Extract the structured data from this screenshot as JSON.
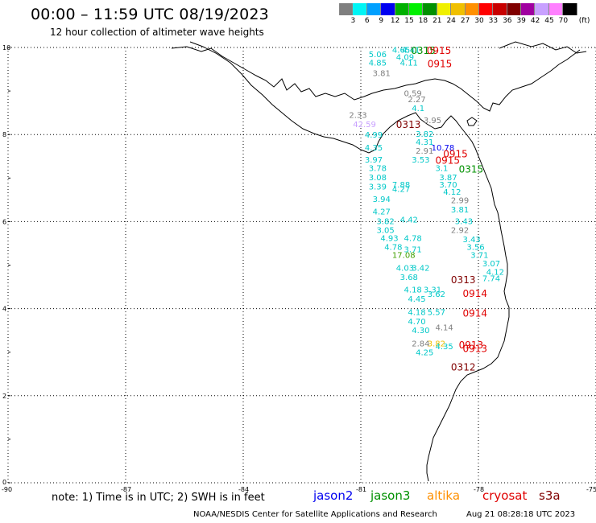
{
  "header": {
    "title": "00:00 – 11:59 UTC 08/19/2023",
    "subtitle": "12 hour collection of altimeter wave heights"
  },
  "legend": {
    "unit": "(ft)",
    "colors": [
      "#7f7f7f",
      "#00f5f5",
      "#00a0ff",
      "#0000f0",
      "#00b000",
      "#00f000",
      "#009000",
      "#f0f000",
      "#f0c000",
      "#ff9000",
      "#ff0000",
      "#c80000",
      "#800000",
      "#a000a0",
      "#c8a0ff",
      "#ff80ff",
      "#000000"
    ],
    "labels": [
      "3",
      "6",
      "9",
      "12",
      "15",
      "18",
      "21",
      "24",
      "27",
      "30",
      "33",
      "36",
      "39",
      "42",
      "45",
      "70"
    ]
  },
  "axes": {
    "x_ticks": [
      "-90",
      "-87",
      "-84",
      "-81",
      "-78",
      "-75"
    ],
    "y_ticks": [
      "10",
      "8",
      "6",
      "4",
      "2",
      "0"
    ]
  },
  "wave_labels": [
    {
      "text": "4.65",
      "lon": -80.2,
      "lat": 9.88,
      "color": "#00c8c8"
    },
    {
      "text": "4.41",
      "lon": -79.95,
      "lat": 9.88,
      "color": "#00c8c8"
    },
    {
      "text": "5.06",
      "lon": -80.8,
      "lat": 9.78,
      "color": "#00c8c8"
    },
    {
      "text": "4.09",
      "lon": -80.1,
      "lat": 9.71,
      "color": "#00c8c8"
    },
    {
      "text": "4.85",
      "lon": -80.8,
      "lat": 9.58,
      "color": "#00c8c8"
    },
    {
      "text": "4.11",
      "lon": -80.0,
      "lat": 9.58,
      "color": "#00c8c8"
    },
    {
      "text": "3.81",
      "lon": -80.7,
      "lat": 9.34,
      "color": "#7f7f7f"
    },
    {
      "text": "0.59",
      "lon": -79.9,
      "lat": 8.88,
      "color": "#7f7f7f"
    },
    {
      "text": "2.27",
      "lon": -79.8,
      "lat": 8.74,
      "color": "#7f7f7f"
    },
    {
      "text": "4.1",
      "lon": -79.7,
      "lat": 8.54,
      "color": "#00c8c8"
    },
    {
      "text": "2.33",
      "lon": -81.3,
      "lat": 8.38,
      "color": "#7f7f7f"
    },
    {
      "text": "42.59",
      "lon": -81.2,
      "lat": 8.17,
      "color": "#c8a0ff"
    },
    {
      "text": "3.95",
      "lon": -79.4,
      "lat": 8.26,
      "color": "#7f7f7f"
    },
    {
      "text": "4.99",
      "lon": -80.9,
      "lat": 7.93,
      "color": "#00c8c8"
    },
    {
      "text": "3.82",
      "lon": -79.6,
      "lat": 7.95,
      "color": "#00c8c8"
    },
    {
      "text": "4.31",
      "lon": -79.6,
      "lat": 7.76,
      "color": "#00c8c8"
    },
    {
      "text": "10.78",
      "lon": -79.2,
      "lat": 7.63,
      "color": "#0000f0"
    },
    {
      "text": "4.35",
      "lon": -80.9,
      "lat": 7.63,
      "color": "#00c8c8"
    },
    {
      "text": "2.91",
      "lon": -79.6,
      "lat": 7.56,
      "color": "#7f7f7f"
    },
    {
      "text": "3.97",
      "lon": -80.9,
      "lat": 7.36,
      "color": "#00c8c8"
    },
    {
      "text": "3.53",
      "lon": -79.7,
      "lat": 7.36,
      "color": "#00c8c8"
    },
    {
      "text": "3.78",
      "lon": -80.8,
      "lat": 7.16,
      "color": "#00c8c8"
    },
    {
      "text": "3.1",
      "lon": -79.1,
      "lat": 7.16,
      "color": "#00c8c8"
    },
    {
      "text": "3.08",
      "lon": -80.8,
      "lat": 6.95,
      "color": "#00c8c8"
    },
    {
      "text": "3.87",
      "lon": -79.0,
      "lat": 6.95,
      "color": "#00c8c8"
    },
    {
      "text": "7.88",
      "lon": -80.2,
      "lat": 6.78,
      "color": "#00c8c8"
    },
    {
      "text": "3.70",
      "lon": -79.0,
      "lat": 6.78,
      "color": "#00c8c8"
    },
    {
      "text": "3.39",
      "lon": -80.8,
      "lat": 6.74,
      "color": "#00c8c8"
    },
    {
      "text": "4.27",
      "lon": -80.2,
      "lat": 6.68,
      "color": "#00c8c8"
    },
    {
      "text": "4.12",
      "lon": -78.9,
      "lat": 6.62,
      "color": "#00c8c8"
    },
    {
      "text": "3.94",
      "lon": -80.7,
      "lat": 6.45,
      "color": "#00c8c8"
    },
    {
      "text": "2.99",
      "lon": -78.7,
      "lat": 6.42,
      "color": "#7f7f7f"
    },
    {
      "text": "4.27",
      "lon": -80.7,
      "lat": 6.16,
      "color": "#00c8c8"
    },
    {
      "text": "3.81",
      "lon": -78.7,
      "lat": 6.21,
      "color": "#00c8c8"
    },
    {
      "text": "3.82",
      "lon": -80.6,
      "lat": 5.94,
      "color": "#00c8c8"
    },
    {
      "text": "4.42",
      "lon": -80.0,
      "lat": 5.98,
      "color": "#00c8c8"
    },
    {
      "text": "3.43",
      "lon": -78.6,
      "lat": 5.94,
      "color": "#00c8c8"
    },
    {
      "text": "3.05",
      "lon": -80.6,
      "lat": 5.74,
      "color": "#00c8c8"
    },
    {
      "text": "2.92",
      "lon": -78.7,
      "lat": 5.74,
      "color": "#7f7f7f"
    },
    {
      "text": "4.93",
      "lon": -80.5,
      "lat": 5.55,
      "color": "#00c8c8"
    },
    {
      "text": "4.78",
      "lon": -79.9,
      "lat": 5.55,
      "color": "#00c8c8"
    },
    {
      "text": "3.43",
      "lon": -78.4,
      "lat": 5.53,
      "color": "#00c8c8"
    },
    {
      "text": "4.78",
      "lon": -80.4,
      "lat": 5.35,
      "color": "#00c8c8"
    },
    {
      "text": "3.71",
      "lon": -79.9,
      "lat": 5.3,
      "color": "#00c8c8"
    },
    {
      "text": "3.56",
      "lon": -78.3,
      "lat": 5.35,
      "color": "#00c8c8"
    },
    {
      "text": "17.08",
      "lon": -80.2,
      "lat": 5.17,
      "color": "#40a000"
    },
    {
      "text": "3.71",
      "lon": -78.2,
      "lat": 5.17,
      "color": "#00c8c8"
    },
    {
      "text": "4.03",
      "lon": -80.1,
      "lat": 4.87,
      "color": "#00c8c8"
    },
    {
      "text": "3.42",
      "lon": -79.7,
      "lat": 4.87,
      "color": "#00c8c8"
    },
    {
      "text": "3.07",
      "lon": -77.9,
      "lat": 4.97,
      "color": "#00c8c8"
    },
    {
      "text": "3.68",
      "lon": -80.0,
      "lat": 4.66,
      "color": "#00c8c8"
    },
    {
      "text": "4.12",
      "lon": -77.8,
      "lat": 4.78,
      "color": "#00c8c8"
    },
    {
      "text": "7.74",
      "lon": -77.9,
      "lat": 4.63,
      "color": "#00c8c8"
    },
    {
      "text": "4.18",
      "lon": -79.9,
      "lat": 4.37,
      "color": "#00c8c8"
    },
    {
      "text": "3.31",
      "lon": -79.4,
      "lat": 4.37,
      "color": "#00c8c8"
    },
    {
      "text": "3.62",
      "lon": -79.3,
      "lat": 4.27,
      "color": "#00c8c8"
    },
    {
      "text": "4.45",
      "lon": -79.8,
      "lat": 4.16,
      "color": "#00c8c8"
    },
    {
      "text": "4.18",
      "lon": -79.8,
      "lat": 3.85,
      "color": "#00c8c8"
    },
    {
      "text": "5.57",
      "lon": -79.3,
      "lat": 3.85,
      "color": "#00c8c8"
    },
    {
      "text": "4.70",
      "lon": -79.8,
      "lat": 3.64,
      "color": "#00c8c8"
    },
    {
      "text": "4.14",
      "lon": -79.1,
      "lat": 3.5,
      "color": "#7f7f7f"
    },
    {
      "text": "4.30",
      "lon": -79.7,
      "lat": 3.44,
      "color": "#00c8c8"
    },
    {
      "text": "2.84",
      "lon": -79.7,
      "lat": 3.13,
      "color": "#7f7f7f"
    },
    {
      "text": "3.82",
      "lon": -79.3,
      "lat": 3.13,
      "color": "#f0c000"
    },
    {
      "text": "4.35",
      "lon": -79.1,
      "lat": 3.07,
      "color": "#00c8c8"
    },
    {
      "text": "4.25",
      "lon": -79.6,
      "lat": 2.93,
      "color": "#00c8c8"
    }
  ],
  "pass_labels": [
    {
      "text": "0315",
      "lon": -79.72,
      "lat": 9.85,
      "color": "#009000"
    },
    {
      "text": "0915",
      "lon": -79.32,
      "lat": 9.85,
      "color": "#e00000"
    },
    {
      "text": "0915",
      "lon": -79.3,
      "lat": 9.55,
      "color": "#e00000"
    },
    {
      "text": "0313",
      "lon": -80.1,
      "lat": 8.15,
      "color": "#800000"
    },
    {
      "text": "0915",
      "lon": -78.9,
      "lat": 7.48,
      "color": "#e00000"
    },
    {
      "text": "0915",
      "lon": -79.1,
      "lat": 7.33,
      "color": "#e00000"
    },
    {
      "text": "0315",
      "lon": -78.5,
      "lat": 7.13,
      "color": "#009000"
    },
    {
      "text": "0313",
      "lon": -78.7,
      "lat": 4.58,
      "color": "#800000"
    },
    {
      "text": "0914",
      "lon": -78.4,
      "lat": 4.27,
      "color": "#e00000"
    },
    {
      "text": "0914",
      "lon": -78.4,
      "lat": 3.82,
      "color": "#e00000"
    },
    {
      "text": "0913",
      "lon": -78.5,
      "lat": 3.09,
      "color": "#e00000"
    },
    {
      "text": "0913",
      "lon": -78.4,
      "lat": 3.0,
      "color": "#e00000"
    },
    {
      "text": "0312",
      "lon": -78.7,
      "lat": 2.58,
      "color": "#800000"
    }
  ],
  "footer": {
    "note": "note:  1) Time is in UTC;  2) SWH is in feet",
    "satellites": [
      {
        "name": "jason2",
        "color": "#0000f0"
      },
      {
        "name": "jason3",
        "color": "#009000"
      },
      {
        "name": "altika",
        "color": "#ff9000"
      },
      {
        "name": "cryosat",
        "color": "#e00000"
      },
      {
        "name": "s3a",
        "color": "#800000"
      }
    ],
    "credit": "NOAA/NESDIS Center for Satellite Applications and Research",
    "timestamp": "Aug 21 08:28:18 UTC 2023"
  }
}
